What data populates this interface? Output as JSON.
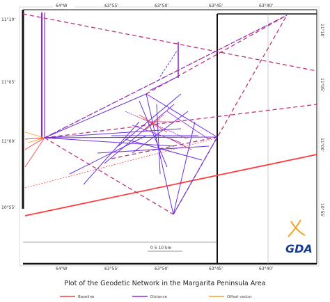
{
  "map": {
    "title": "Plot of the Geodetic Network in the Margarita Peninsula Area",
    "scale_label": "0  5  10 km",
    "logo_text": "GDA",
    "accent_purple": "#8c2bd6",
    "accent_red": "#ff3b3b",
    "accent_orange": "#f4a020",
    "accent_magenta": "#c0307a"
  },
  "top_ticks": [
    "64°W",
    "63°55'",
    "63°50'",
    "63°45'",
    "63°40'"
  ],
  "bottom_ticks": [
    "64°W",
    "63°55'",
    "63°50'",
    "63°45'",
    "63°40'"
  ],
  "left_ticks": [
    "11°10'",
    "11°05'",
    "11°00'",
    "10°55'"
  ],
  "right_ticks": [
    "11°10'",
    "11°05'",
    "11°00'",
    "10°55'"
  ],
  "legend": [
    {
      "label": "Baseline",
      "color": "#ff3b3b"
    },
    {
      "label": "Distance",
      "color": "#8c2bd6"
    },
    {
      "label": "Offset vector",
      "color": "#f4a020"
    }
  ]
}
